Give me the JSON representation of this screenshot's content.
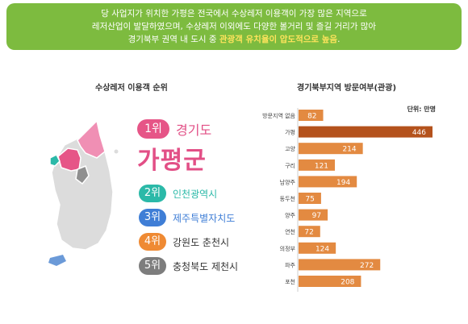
{
  "banner": {
    "line1": "당 사업지가 위치한 가평은 전국에서 수상레저 이용객이 가장 많은 지역으로",
    "line2": "레저산업이 발달하였으며, 수상레저 이외에도 다양한 볼거리 및 즐길 거리가 많아",
    "line3_prefix": "경기북부 권역 내 도시 중 ",
    "line3_highlight": "관광객 유치율이 압도적으로 높음",
    "line3_suffix": "."
  },
  "ranking": {
    "title": "수상레저 이용객 순위",
    "first": {
      "rank": "1위",
      "region": "경기도",
      "name": "가평군"
    },
    "others": [
      {
        "rank": "2위",
        "name": "인천광역시",
        "color": "#2bb9a8"
      },
      {
        "rank": "3위",
        "name": "제주특별자치도",
        "color": "#3f7ed6"
      },
      {
        "rank": "4위",
        "name": "강원도 춘천시",
        "color": "#ef8a33"
      },
      {
        "rank": "5위",
        "name": "충청북도 제천시",
        "color": "#7d7d7d"
      }
    ]
  },
  "chart_data": {
    "type": "bar",
    "orientation": "horizontal",
    "title": "경기북부지역 방문여부(관광)",
    "unit": "단위: 만명",
    "categories": [
      "방문지역 없음",
      "가평",
      "고양",
      "구리",
      "남양주",
      "동두천",
      "양주",
      "연천",
      "의정부",
      "파주",
      "포천"
    ],
    "values": [
      82,
      446,
      214,
      121,
      194,
      75,
      97,
      72,
      124,
      272,
      208
    ],
    "highlight_category": "가평",
    "colors": {
      "bar": "#e38a41",
      "highlight": "#b4521c"
    }
  },
  "colors": {
    "banner": "#7dbb3f",
    "accent_pink": "#e24f86"
  }
}
